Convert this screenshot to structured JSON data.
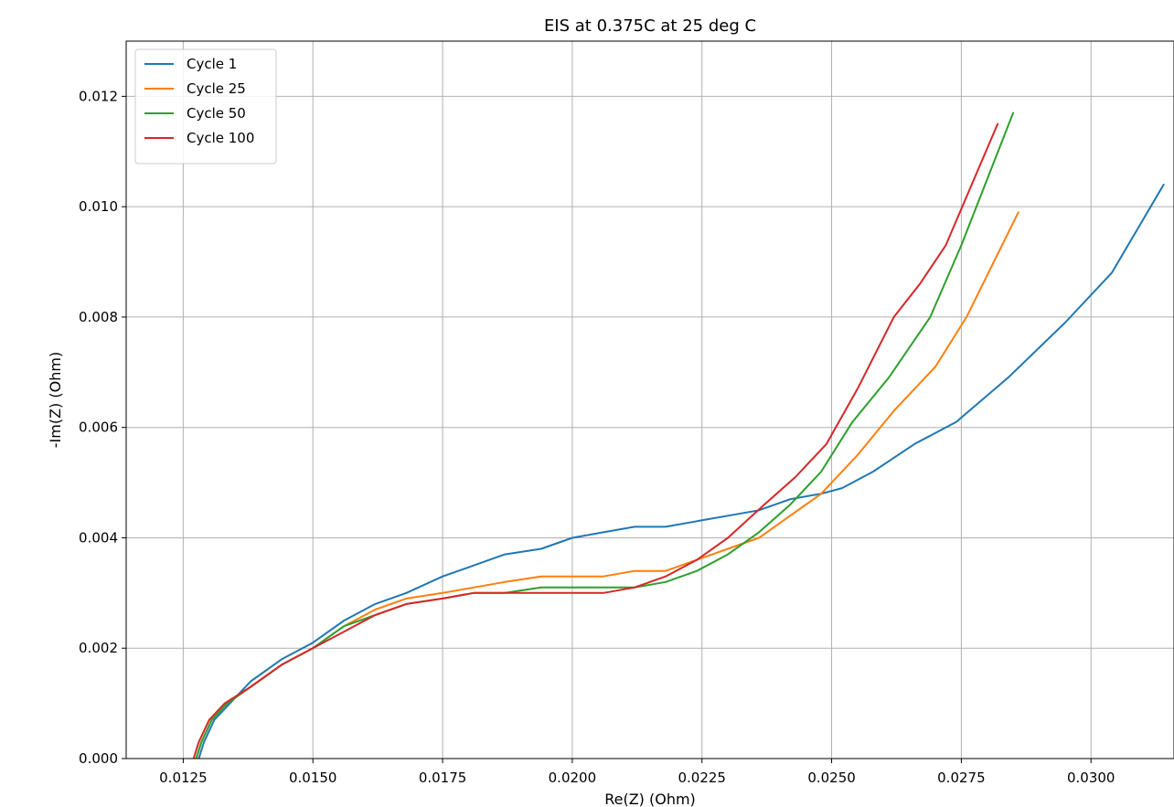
{
  "chart_data": {
    "type": "line",
    "title": "EIS at 0.375C at 25 deg C",
    "xlabel": "Re(Z) (Ohm)",
    "ylabel": "-Im(Z) (Ohm)",
    "xlim": [
      0.0114,
      0.0316
    ],
    "ylim": [
      0.0,
      0.013
    ],
    "x_ticks": [
      0.0125,
      0.015,
      0.0175,
      0.02,
      0.0225,
      0.025,
      0.0275,
      0.03
    ],
    "x_tick_labels": [
      "0.0125",
      "0.0150",
      "0.0175",
      "0.0200",
      "0.0225",
      "0.0250",
      "0.0275",
      "0.0300"
    ],
    "y_ticks": [
      0.0,
      0.002,
      0.004,
      0.006,
      0.008,
      0.01,
      0.012
    ],
    "y_tick_labels": [
      "0.000",
      "0.002",
      "0.004",
      "0.006",
      "0.008",
      "0.010",
      "0.012"
    ],
    "grid": true,
    "legend_position": "top-left",
    "series": [
      {
        "name": "Cycle 1",
        "color": "#1f77b4",
        "x": [
          0.0128,
          0.0129,
          0.0131,
          0.0134,
          0.0138,
          0.0144,
          0.015,
          0.0156,
          0.0162,
          0.0168,
          0.0175,
          0.0181,
          0.0187,
          0.0194,
          0.02,
          0.0206,
          0.0212,
          0.0218,
          0.0224,
          0.023,
          0.0236,
          0.0242,
          0.0248,
          0.0252,
          0.0258,
          0.0266,
          0.0274,
          0.0284,
          0.0295,
          0.0304,
          0.0314
        ],
        "y": [
          0.0,
          0.0003,
          0.0007,
          0.001,
          0.0014,
          0.0018,
          0.0021,
          0.0025,
          0.0028,
          0.003,
          0.0033,
          0.0035,
          0.0037,
          0.0038,
          0.004,
          0.0041,
          0.0042,
          0.0042,
          0.0043,
          0.0044,
          0.0045,
          0.0047,
          0.0048,
          0.0049,
          0.0052,
          0.0057,
          0.0061,
          0.0069,
          0.0079,
          0.0088,
          0.0104
        ]
      },
      {
        "name": "Cycle 25",
        "color": "#ff7f0e",
        "x": [
          0.01275,
          0.01285,
          0.01305,
          0.01335,
          0.0138,
          0.0144,
          0.015,
          0.0156,
          0.0162,
          0.0168,
          0.0175,
          0.0181,
          0.0187,
          0.0194,
          0.02,
          0.0206,
          0.0212,
          0.0218,
          0.0224,
          0.023,
          0.0236,
          0.0242,
          0.0248,
          0.0255,
          0.0262,
          0.027,
          0.0276,
          0.0286
        ],
        "y": [
          0.0,
          0.0003,
          0.0007,
          0.001,
          0.0013,
          0.0017,
          0.002,
          0.0024,
          0.0027,
          0.0029,
          0.003,
          0.0031,
          0.0032,
          0.0033,
          0.0033,
          0.0033,
          0.0034,
          0.0034,
          0.0036,
          0.0038,
          0.004,
          0.0044,
          0.0048,
          0.0055,
          0.0063,
          0.0071,
          0.008,
          0.0099
        ]
      },
      {
        "name": "Cycle 50",
        "color": "#2ca02c",
        "x": [
          0.01275,
          0.01285,
          0.01305,
          0.01335,
          0.0138,
          0.0144,
          0.015,
          0.0156,
          0.0162,
          0.0168,
          0.0175,
          0.0181,
          0.0187,
          0.0194,
          0.02,
          0.0206,
          0.0212,
          0.0218,
          0.0224,
          0.023,
          0.0236,
          0.0242,
          0.0248,
          0.0254,
          0.0261,
          0.0269,
          0.0275,
          0.0285
        ],
        "y": [
          0.0,
          0.0003,
          0.0007,
          0.001,
          0.0013,
          0.0017,
          0.002,
          0.0024,
          0.0026,
          0.0028,
          0.0029,
          0.003,
          0.003,
          0.0031,
          0.0031,
          0.0031,
          0.0031,
          0.0032,
          0.0034,
          0.0037,
          0.0041,
          0.0046,
          0.0052,
          0.0061,
          0.0069,
          0.008,
          0.0093,
          0.0117
        ]
      },
      {
        "name": "Cycle 100",
        "color": "#d62728",
        "x": [
          0.0127,
          0.0128,
          0.013,
          0.0133,
          0.0138,
          0.0144,
          0.015,
          0.0156,
          0.0162,
          0.0168,
          0.0175,
          0.0181,
          0.0187,
          0.0194,
          0.02,
          0.0206,
          0.0212,
          0.0218,
          0.0224,
          0.023,
          0.0237,
          0.0243,
          0.0249,
          0.0255,
          0.0262,
          0.0267,
          0.0272,
          0.0282
        ],
        "y": [
          0.0,
          0.0003,
          0.0007,
          0.001,
          0.0013,
          0.0017,
          0.002,
          0.0023,
          0.0026,
          0.0028,
          0.0029,
          0.003,
          0.003,
          0.003,
          0.003,
          0.003,
          0.0031,
          0.0033,
          0.0036,
          0.004,
          0.0046,
          0.0051,
          0.0057,
          0.0067,
          0.008,
          0.0086,
          0.0093,
          0.0115
        ]
      }
    ]
  }
}
